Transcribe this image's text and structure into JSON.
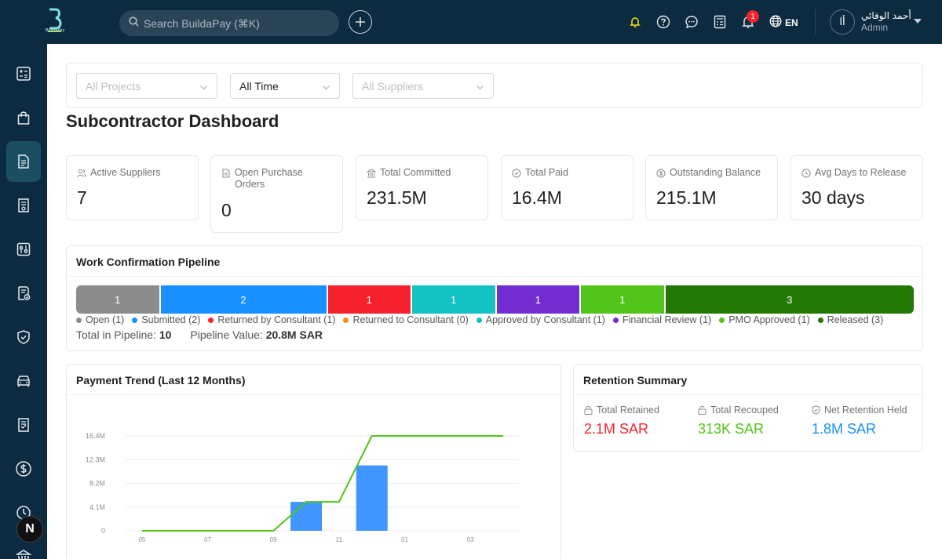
{
  "topbar": {
    "logo_text": "BuildaPay",
    "search_placeholder": "Search BuildaPay (⌘K)",
    "notifications_count": "1",
    "language": "EN",
    "user_initial": "أا",
    "user_name": "أحمد الوفائي",
    "user_role": "Admin"
  },
  "sidebar": {
    "items": [
      "dashboard-icon",
      "purchases-icon",
      "documents-icon",
      "contracts-icon",
      "settings-sliders-icon",
      "approved-document-icon",
      "shield-icon",
      "vehicle-icon",
      "invoice-icon",
      "dollar-icon",
      "clock-icon",
      "bank-icon"
    ],
    "active_index": 2,
    "floating_badge": "N"
  },
  "filters": {
    "projects_placeholder": "All Projects",
    "time_value": "All Time",
    "suppliers_placeholder": "All Suppliers"
  },
  "page": {
    "title": "Subcontractor Dashboard"
  },
  "stats": [
    {
      "label": "Active Suppliers",
      "value": "7",
      "icon": "users-icon"
    },
    {
      "label": "Open Purchase Orders",
      "value": "0",
      "icon": "file-icon"
    },
    {
      "label": "Total Committed",
      "value": "231.5M",
      "icon": "bank-icon"
    },
    {
      "label": "Total Paid",
      "value": "16.4M",
      "icon": "check-circle-icon"
    },
    {
      "label": "Outstanding Balance",
      "value": "215.1M",
      "icon": "dollar-circle-icon"
    },
    {
      "label": "Avg Days to Release",
      "value": "30 days",
      "icon": "clock-icon"
    }
  ],
  "pipeline": {
    "title": "Work Confirmation Pipeline",
    "stages": [
      {
        "name": "Open",
        "count": 1,
        "color": "#8c8c8c"
      },
      {
        "name": "Submitted",
        "count": 2,
        "color": "#1890ff"
      },
      {
        "name": "Returned by Consultant",
        "count": 1,
        "color": "#f5222d"
      },
      {
        "name": "Returned to Consultant",
        "count": 0,
        "color": "#fa8c16"
      },
      {
        "name": "Approved by Consultant",
        "count": 1,
        "color": "#13c2c2"
      },
      {
        "name": "Financial Review",
        "count": 1,
        "color": "#722ed1"
      },
      {
        "name": "PMO Approved",
        "count": 1,
        "color": "#52c41a"
      },
      {
        "name": "Released",
        "count": 3,
        "color": "#237804"
      }
    ],
    "legend": [
      "Open (1)",
      "Submitted (2)",
      "Returned by Consultant (1)",
      "Returned to Consultant (0)",
      "Approved by Consultant (1)",
      "Financial Review (1)",
      "PMO Approved (1)",
      "Released (3)"
    ],
    "total_label": "Total in Pipeline:",
    "total_value": "10",
    "value_label": "Pipeline Value:",
    "value_value": "20.8M SAR"
  },
  "trend": {
    "title": "Payment Trend (Last 12 Months)"
  },
  "chart_data": {
    "type": "bar",
    "title": "Payment Trend (Last 12 Months)",
    "x_tick_labels": [
      "05",
      "07",
      "09",
      "11",
      "01",
      "03"
    ],
    "y_tick_labels": [
      "0",
      "4.1M",
      "8.2M",
      "12.3M",
      "16.4M"
    ],
    "ylim": [
      0,
      16.4
    ],
    "grid": true,
    "categories": [
      "05",
      "06",
      "07",
      "08",
      "09",
      "10",
      "11",
      "12",
      "01",
      "02",
      "03",
      "04"
    ],
    "series": [
      {
        "kind": "bar",
        "color": "#4096ff",
        "values": [
          0,
          0,
          0,
          0,
          0,
          5.0,
          0,
          11.3,
          0,
          0,
          0,
          0
        ]
      },
      {
        "kind": "line",
        "color": "#52c41a",
        "values": [
          0,
          0,
          0,
          0,
          0,
          5.0,
          5.0,
          16.4,
          16.4,
          16.4,
          16.4,
          16.4
        ]
      }
    ]
  },
  "retention": {
    "title": "Retention Summary",
    "items": [
      {
        "label": "Total Retained",
        "value": "2.1M SAR",
        "color": "#f5222d",
        "icon": "lock-icon"
      },
      {
        "label": "Total Recouped",
        "value": "313K SAR",
        "color": "#52c41a",
        "icon": "unlock-icon"
      },
      {
        "label": "Net Retention Held",
        "value": "1.8M SAR",
        "color": "#1890ff",
        "icon": "shield-check-icon"
      }
    ]
  }
}
